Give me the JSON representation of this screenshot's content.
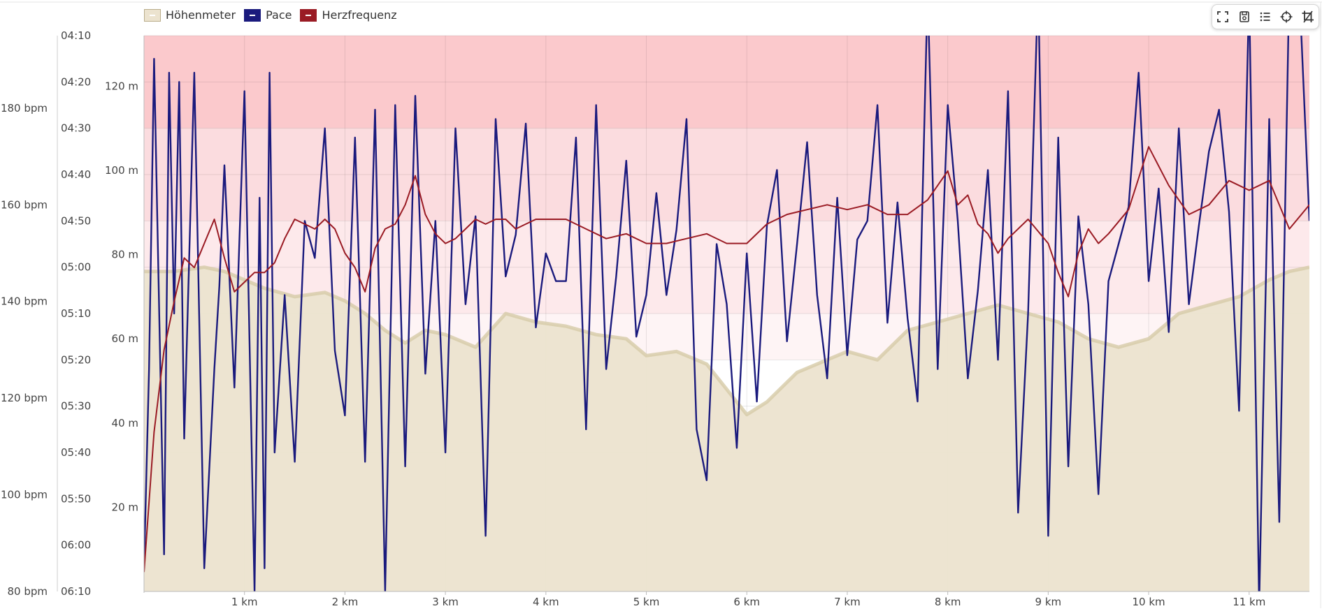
{
  "legend": [
    {
      "label": "Höhenmeter",
      "color": "#ece3cf",
      "border": "#b9ad8a"
    },
    {
      "label": "Pace",
      "color": "#1a1a7d",
      "border": "#1a1a7d"
    },
    {
      "label": "Herzfrequenz",
      "color": "#9a1b24",
      "border": "#9a1b24"
    }
  ],
  "toolbar": [
    {
      "name": "fullscreen-icon"
    },
    {
      "name": "save-icon"
    },
    {
      "name": "list-icon"
    },
    {
      "name": "crosshair-icon"
    },
    {
      "name": "crop-icon"
    }
  ],
  "chart_data": {
    "type": "line",
    "x_axis": {
      "unit": "km",
      "range": [
        0,
        11.6
      ],
      "ticks": [
        1,
        2,
        3,
        4,
        5,
        6,
        7,
        8,
        9,
        10,
        11
      ],
      "tick_labels": [
        "1 km",
        "2 km",
        "3 km",
        "4 km",
        "5 km",
        "6 km",
        "7 km",
        "8 km",
        "9 km",
        "10 km",
        "11 km"
      ]
    },
    "y_axes": {
      "heart_rate": {
        "range": [
          80,
          195
        ],
        "ticks": [
          80,
          100,
          120,
          140,
          160,
          180
        ],
        "tick_labels": [
          "80 bpm",
          "100 bpm",
          "120 bpm",
          "140 bpm",
          "160 bpm",
          "180 bpm"
        ]
      },
      "pace": {
        "range_seconds_per_km": [
          250,
          370
        ],
        "reversed": true,
        "tick_labels": [
          "04:10",
          "04:20",
          "04:30",
          "04:40",
          "04:50",
          "05:00",
          "05:10",
          "05:20",
          "05:30",
          "05:40",
          "05:50",
          "06:00",
          "06:10"
        ]
      },
      "elevation": {
        "range": [
          0,
          132
        ],
        "ticks": [
          20,
          40,
          60,
          80,
          100,
          120
        ],
        "tick_labels": [
          "20 m",
          "40 m",
          "60 m",
          "80 m",
          "100 m",
          "120 m"
        ]
      }
    },
    "bands": [
      {
        "from": 4.1,
        "to": 4.3,
        "axis": "pace",
        "color": "#fbc9cc"
      },
      {
        "from": 4.3,
        "to": 4.5,
        "axis": "pace",
        "color": "#fbdcdf"
      },
      {
        "from": 4.5,
        "to": 5.1,
        "axis": "pace",
        "color": "#fde9eb"
      },
      {
        "from": 5.1,
        "to": 5.2,
        "axis": "pace",
        "color": "#fef4f5"
      }
    ],
    "grid": true,
    "series": [
      {
        "name": "Höhenmeter",
        "axis": "elevation",
        "type": "area",
        "color": "#ece3cf",
        "stroke": "#d6cba8",
        "x": [
          0,
          0.3,
          0.6,
          0.8,
          1,
          1.2,
          1.5,
          1.8,
          2,
          2.2,
          2.4,
          2.6,
          2.8,
          3,
          3.3,
          3.6,
          3.9,
          4.2,
          4.5,
          4.8,
          5.0,
          5.3,
          5.6,
          5.8,
          6.0,
          6.2,
          6.5,
          6.8,
          7.0,
          7.3,
          7.6,
          7.9,
          8.2,
          8.5,
          8.8,
          9.1,
          9.4,
          9.7,
          10.0,
          10.3,
          10.6,
          10.9,
          11.2,
          11.4,
          11.6
        ],
        "y": [
          76,
          76,
          77,
          76,
          74,
          72,
          70,
          71,
          69,
          66,
          62,
          59,
          62,
          61,
          58,
          66,
          64,
          63,
          61,
          60,
          56,
          57,
          54,
          48,
          42,
          45,
          52,
          55,
          57,
          55,
          62,
          64,
          66,
          68,
          66,
          64,
          60,
          58,
          60,
          66,
          68,
          70,
          74,
          76,
          77
        ]
      },
      {
        "name": "Pace",
        "axis": "pace",
        "type": "line",
        "color": "#1a1a7d",
        "x": [
          0,
          0.05,
          0.1,
          0.2,
          0.25,
          0.3,
          0.35,
          0.4,
          0.5,
          0.6,
          0.7,
          0.75,
          0.8,
          0.9,
          1.0,
          1.1,
          1.15,
          1.2,
          1.25,
          1.3,
          1.4,
          1.5,
          1.6,
          1.7,
          1.8,
          1.9,
          2.0,
          2.1,
          2.2,
          2.3,
          2.4,
          2.5,
          2.6,
          2.7,
          2.8,
          2.9,
          3.0,
          3.1,
          3.2,
          3.3,
          3.4,
          3.5,
          3.6,
          3.7,
          3.8,
          3.9,
          4.0,
          4.1,
          4.2,
          4.3,
          4.4,
          4.5,
          4.6,
          4.7,
          4.8,
          4.9,
          5.0,
          5.1,
          5.2,
          5.3,
          5.4,
          5.5,
          5.6,
          5.7,
          5.8,
          5.9,
          6.0,
          6.1,
          6.2,
          6.3,
          6.4,
          6.5,
          6.6,
          6.7,
          6.8,
          6.9,
          7.0,
          7.1,
          7.2,
          7.3,
          7.4,
          7.5,
          7.6,
          7.7,
          7.8,
          7.9,
          8.0,
          8.1,
          8.2,
          8.3,
          8.4,
          8.5,
          8.6,
          8.7,
          8.8,
          8.9,
          9.0,
          9.1,
          9.2,
          9.3,
          9.4,
          9.5,
          9.6,
          9.7,
          9.8,
          9.9,
          10.0,
          10.1,
          10.2,
          10.3,
          10.4,
          10.5,
          10.6,
          10.7,
          10.8,
          10.9,
          11.0,
          11.1,
          11.2,
          11.3,
          11.4,
          11.5,
          11.6
        ],
        "y": [
          365,
          322,
          255,
          362,
          258,
          310,
          260,
          337,
          258,
          365,
          322,
          304,
          278,
          326,
          262,
          370,
          285,
          365,
          258,
          340,
          306,
          342,
          290,
          298,
          270,
          318,
          332,
          272,
          342,
          266,
          370,
          265,
          343,
          263,
          323,
          290,
          340,
          270,
          308,
          289,
          358,
          268,
          302,
          293,
          269,
          313,
          297,
          303,
          303,
          272,
          335,
          265,
          322,
          302,
          277,
          315,
          306,
          284,
          306,
          292,
          268,
          335,
          346,
          295,
          308,
          339,
          297,
          329,
          291,
          279,
          316,
          295,
          273,
          306,
          324,
          285,
          319,
          294,
          290,
          265,
          312,
          286,
          311,
          329,
          240,
          322,
          265,
          290,
          324,
          305,
          279,
          320,
          262,
          353,
          310,
          239,
          358,
          272,
          343,
          289,
          308,
          349,
          303,
          295,
          287,
          258,
          303,
          283,
          314,
          270,
          308,
          291,
          275,
          266,
          288,
          331,
          241,
          373,
          268,
          355,
          238,
          240,
          290
        ]
      },
      {
        "name": "Herzfrequenz",
        "axis": "heart_rate",
        "type": "line",
        "color": "#9a1b24",
        "x": [
          0,
          0.1,
          0.2,
          0.3,
          0.4,
          0.5,
          0.6,
          0.7,
          0.8,
          0.9,
          1.0,
          1.1,
          1.2,
          1.3,
          1.4,
          1.5,
          1.6,
          1.7,
          1.8,
          1.9,
          2.0,
          2.1,
          2.2,
          2.3,
          2.4,
          2.5,
          2.6,
          2.7,
          2.8,
          2.9,
          3.0,
          3.1,
          3.2,
          3.3,
          3.4,
          3.5,
          3.6,
          3.7,
          3.8,
          3.9,
          4.0,
          4.2,
          4.4,
          4.6,
          4.8,
          5.0,
          5.2,
          5.4,
          5.6,
          5.8,
          6.0,
          6.2,
          6.4,
          6.6,
          6.8,
          7.0,
          7.2,
          7.4,
          7.6,
          7.8,
          8.0,
          8.1,
          8.2,
          8.3,
          8.4,
          8.5,
          8.6,
          8.8,
          9.0,
          9.1,
          9.2,
          9.3,
          9.4,
          9.5,
          9.6,
          9.8,
          10.0,
          10.2,
          10.4,
          10.6,
          10.8,
          11.0,
          11.2,
          11.4,
          11.6
        ],
        "y": [
          84,
          113,
          130,
          140,
          149,
          147,
          152,
          157,
          149,
          142,
          144,
          146,
          146,
          148,
          153,
          157,
          156,
          155,
          157,
          155,
          150,
          147,
          142,
          151,
          155,
          156,
          160,
          166,
          158,
          154,
          152,
          153,
          155,
          157,
          156,
          157,
          157,
          155,
          156,
          157,
          157,
          157,
          155,
          153,
          154,
          152,
          152,
          153,
          154,
          152,
          152,
          156,
          158,
          159,
          160,
          159,
          160,
          158,
          158,
          161,
          167,
          160,
          162,
          156,
          154,
          150,
          153,
          157,
          152,
          146,
          141,
          150,
          155,
          152,
          154,
          159,
          172,
          164,
          158,
          160,
          165,
          163,
          165,
          155,
          160
        ]
      }
    ]
  }
}
